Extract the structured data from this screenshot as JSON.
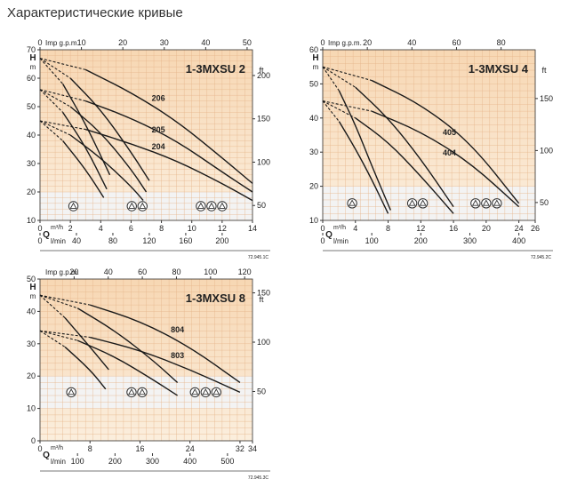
{
  "page_title": "Характеристические кривые",
  "chart_data": [
    {
      "type": "line",
      "title": "1-3MXSU 2",
      "code": "72.945.1C",
      "colors": {
        "bg_top": "#f7d7b3",
        "bg_bottom": "#fbeedd",
        "band": "#f3f3f3",
        "curve": "#1a1a1a"
      },
      "left_axis": {
        "label": "H",
        "unit": "m",
        "range": [
          10,
          70
        ],
        "ticks": [
          10,
          20,
          30,
          40,
          50,
          60,
          70
        ]
      },
      "right_axis": {
        "label": "ft",
        "range": [
          32.8,
          229.7
        ],
        "ticks": [
          50,
          100,
          150,
          200
        ]
      },
      "top_axis": {
        "label": "Imp g.p.m.",
        "range": [
          0,
          51.3
        ],
        "ticks": [
          0,
          10,
          20,
          30,
          40,
          50
        ]
      },
      "bottom_axes": [
        {
          "label": "m³/h",
          "letter": "Q",
          "range": [
            0,
            14
          ],
          "ticks": [
            0,
            2,
            4,
            6,
            8,
            10,
            12,
            14
          ]
        },
        {
          "label": "l/min",
          "range": [
            0,
            233.3
          ],
          "ticks": [
            0,
            40,
            80,
            120,
            160,
            200
          ]
        }
      ],
      "grid": true,
      "band_range": [
        10,
        20
      ],
      "series": [
        {
          "name": "206",
          "x": [
            0,
            3,
            6,
            9,
            12,
            14
          ],
          "y": [
            67,
            63,
            55,
            45,
            32,
            23
          ],
          "label_x": 7.8,
          "label_y": 52
        },
        {
          "name": "205",
          "x": [
            0,
            3,
            6,
            9,
            12,
            14
          ],
          "y": [
            56,
            52,
            46,
            38,
            27,
            20
          ],
          "label_x": 7.8,
          "label_y": 41
        },
        {
          "name": "204",
          "x": [
            0,
            3,
            6,
            9,
            12,
            14
          ],
          "y": [
            45,
            42,
            37,
            31,
            23,
            17
          ],
          "label_x": 7.8,
          "label_y": 35
        },
        {
          "x": [
            0,
            2,
            4,
            6,
            7.2
          ],
          "y": [
            67,
            60,
            49,
            34,
            24
          ]
        },
        {
          "x": [
            0,
            2,
            4,
            6,
            7
          ],
          "y": [
            56,
            50,
            41,
            28,
            20
          ]
        },
        {
          "x": [
            0,
            2,
            4,
            6,
            6.8
          ],
          "y": [
            45,
            40,
            32,
            22,
            17
          ]
        },
        {
          "x": [
            0,
            1.5,
            3,
            4.6
          ],
          "y": [
            67,
            58,
            44,
            26
          ]
        },
        {
          "x": [
            0,
            1.5,
            3,
            4.4
          ],
          "y": [
            56,
            48,
            36,
            21
          ]
        },
        {
          "x": [
            0,
            1.5,
            3,
            4.2
          ],
          "y": [
            45,
            38,
            28,
            18
          ]
        }
      ],
      "markers": [
        {
          "x": 2.2,
          "n": 1
        },
        {
          "x": 6.4,
          "n": 2
        },
        {
          "x": 11.3,
          "n": 3
        }
      ]
    },
    {
      "type": "line",
      "title": "1-3MXSU 4",
      "code": "72.945.2C",
      "colors": {
        "bg_top": "#f7d7b3",
        "bg_bottom": "#fbeedd",
        "band": "#f3f3f3",
        "curve": "#1a1a1a"
      },
      "left_axis": {
        "label": "H",
        "unit": "m",
        "range": [
          10,
          60
        ],
        "ticks": [
          10,
          20,
          30,
          40,
          50,
          60
        ]
      },
      "right_axis": {
        "label": "ft",
        "range": [
          32.8,
          196.9
        ],
        "ticks": [
          50,
          100,
          150
        ]
      },
      "top_axis": {
        "label": "Imp g.p.m.",
        "range": [
          0,
          95.3
        ],
        "ticks": [
          0,
          20,
          40,
          60,
          80
        ]
      },
      "bottom_axes": [
        {
          "label": "m³/h",
          "letter": "Q",
          "range": [
            0,
            26
          ],
          "ticks": [
            0,
            4,
            8,
            12,
            16,
            20,
            24,
            26
          ]
        },
        {
          "label": "l/min",
          "range": [
            0,
            433.3
          ],
          "ticks": [
            0,
            100,
            200,
            300,
            400
          ]
        }
      ],
      "grid": true,
      "band_range": [
        10,
        20
      ],
      "series": [
        {
          "name": "405",
          "x": [
            0,
            6,
            12,
            18,
            24
          ],
          "y": [
            55,
            51,
            44,
            33,
            15
          ],
          "label_x": 15.5,
          "label_y": 35
        },
        {
          "name": "404",
          "x": [
            0,
            6,
            12,
            18,
            24
          ],
          "y": [
            45,
            42,
            36,
            27,
            14
          ],
          "label_x": 15.5,
          "label_y": 29
        },
        {
          "x": [
            0,
            4,
            8,
            12,
            16
          ],
          "y": [
            55,
            49,
            40,
            28,
            14
          ]
        },
        {
          "x": [
            0,
            4,
            8,
            12,
            16
          ],
          "y": [
            45,
            40,
            33,
            23,
            12
          ]
        },
        {
          "x": [
            0,
            2,
            4,
            6,
            8.3
          ],
          "y": [
            55,
            48,
            38,
            26,
            13
          ]
        },
        {
          "x": [
            0,
            2,
            4,
            6,
            8
          ],
          "y": [
            45,
            39,
            31,
            22,
            12
          ]
        }
      ],
      "markers": [
        {
          "x": 3.6,
          "n": 1
        },
        {
          "x": 11.6,
          "n": 2
        },
        {
          "x": 20,
          "n": 3
        }
      ]
    },
    {
      "type": "line",
      "title": "1-3MXSU 8",
      "code": "72.945.3C",
      "colors": {
        "bg_top": "#f7d7b3",
        "bg_bottom": "#fbeedd",
        "band": "#f3f3f3",
        "curve": "#1a1a1a"
      },
      "left_axis": {
        "label": "H",
        "unit": "m",
        "range": [
          0,
          50
        ],
        "ticks": [
          0,
          10,
          20,
          30,
          40,
          50
        ]
      },
      "right_axis": {
        "label": "ft",
        "range": [
          0,
          164
        ],
        "ticks": [
          50,
          100,
          150
        ]
      },
      "top_axis": {
        "label": "Imp g.p.m.",
        "range": [
          0,
          124.6
        ],
        "ticks": [
          20,
          40,
          60,
          80,
          100,
          120
        ]
      },
      "bottom_axes": [
        {
          "label": "m³/h",
          "letter": "Q",
          "range": [
            0,
            34
          ],
          "ticks": [
            0,
            8,
            16,
            24,
            32,
            34
          ]
        },
        {
          "label": "l/min",
          "range": [
            0,
            566.7
          ],
          "ticks": [
            100,
            200,
            300,
            400,
            500
          ]
        }
      ],
      "grid": true,
      "band_range": [
        10,
        20
      ],
      "series": [
        {
          "name": "804",
          "x": [
            0,
            8,
            16,
            24,
            32
          ],
          "y": [
            45,
            42,
            37,
            29,
            18
          ],
          "label_x": 22,
          "label_y": 33.5
        },
        {
          "name": "803",
          "x": [
            0,
            8,
            16,
            24,
            32
          ],
          "y": [
            34,
            32,
            28,
            22,
            15
          ],
          "label_x": 22,
          "label_y": 25.5
        },
        {
          "x": [
            0,
            6,
            12,
            18,
            22
          ],
          "y": [
            45,
            41,
            34,
            25,
            18
          ]
        },
        {
          "x": [
            0,
            6,
            12,
            18,
            22
          ],
          "y": [
            34,
            31,
            26,
            19,
            14
          ]
        },
        {
          "x": [
            0,
            4,
            8,
            11
          ],
          "y": [
            45,
            38,
            29,
            22
          ]
        },
        {
          "x": [
            0,
            4,
            8,
            10.5
          ],
          "y": [
            34,
            29,
            22,
            16
          ]
        }
      ],
      "markers": [
        {
          "x": 5,
          "n": 1
        },
        {
          "x": 15.5,
          "n": 2
        },
        {
          "x": 26.5,
          "n": 3
        }
      ]
    }
  ]
}
